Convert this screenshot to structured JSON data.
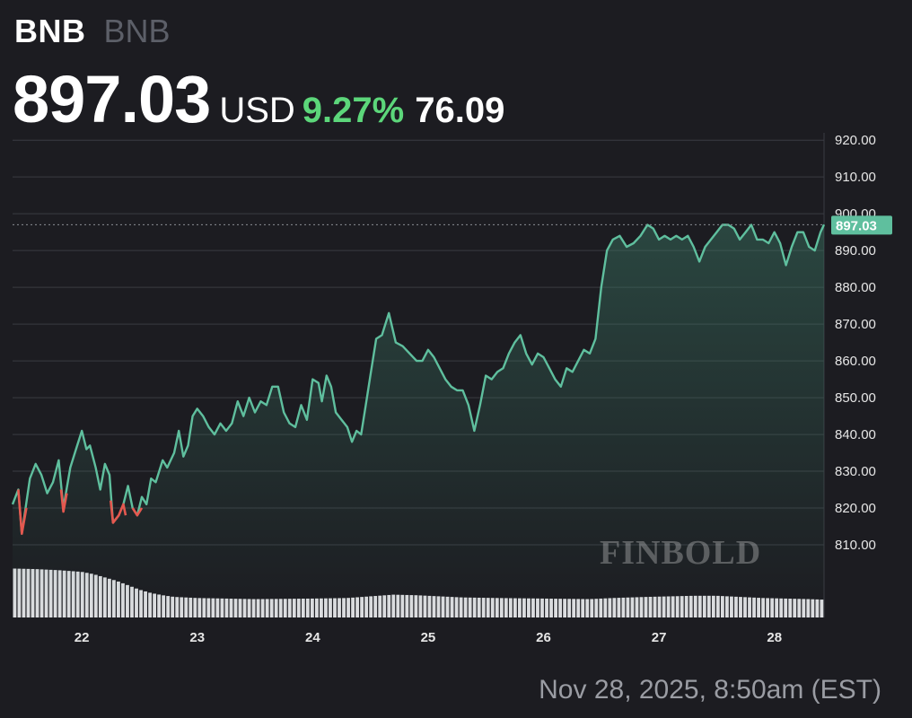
{
  "header": {
    "ticker": "BNB",
    "ticker_sub": "BNB",
    "price": "897.03",
    "currency": "USD",
    "change_pct": "9.27%",
    "change_abs": "76.09"
  },
  "colors": {
    "up": "#5cd67a",
    "line": "#5fbf9e",
    "down": "#e5584f",
    "volume": "#dcdde0",
    "badge": "#5fbf9e"
  },
  "watermark": "FINBOLD",
  "timestamp": "Nov 28, 2025, 8:50am (EST)",
  "chart_data": {
    "type": "area",
    "x_unit": "day of November 2025",
    "ylim": [
      800,
      922
    ],
    "xlim": [
      21.4,
      28.43
    ],
    "yticks": [
      810,
      820,
      830,
      840,
      850,
      860,
      870,
      880,
      890,
      900,
      910,
      920
    ],
    "ytick_labels": [
      "810.00",
      "820.00",
      "830.00",
      "840.00",
      "850.00",
      "860.00",
      "870.00",
      "880.00",
      "890.00",
      "900.00",
      "910.00",
      "920.00"
    ],
    "xticks": [
      22,
      23,
      24,
      25,
      26,
      27,
      28
    ],
    "xtick_labels": [
      "22",
      "23",
      "24",
      "25",
      "26",
      "27",
      "28"
    ],
    "grid": true,
    "current_price": 897.03,
    "current_price_label": "897.03",
    "price_series": [
      [
        21.4,
        821
      ],
      [
        21.45,
        825
      ],
      [
        21.48,
        813
      ],
      [
        21.55,
        828
      ],
      [
        21.6,
        832
      ],
      [
        21.65,
        829
      ],
      [
        21.7,
        824
      ],
      [
        21.75,
        827
      ],
      [
        21.8,
        833
      ],
      [
        21.84,
        820
      ],
      [
        21.9,
        831
      ],
      [
        21.95,
        836
      ],
      [
        22.0,
        841
      ],
      [
        22.04,
        836
      ],
      [
        22.07,
        837
      ],
      [
        22.12,
        831
      ],
      [
        22.16,
        825
      ],
      [
        22.2,
        832
      ],
      [
        22.24,
        829
      ],
      [
        22.27,
        816
      ],
      [
        22.32,
        818
      ],
      [
        22.36,
        821
      ],
      [
        22.4,
        826
      ],
      [
        22.44,
        820
      ],
      [
        22.48,
        818
      ],
      [
        22.52,
        823
      ],
      [
        22.56,
        821
      ],
      [
        22.6,
        828
      ],
      [
        22.64,
        827
      ],
      [
        22.7,
        833
      ],
      [
        22.74,
        831
      ],
      [
        22.8,
        835
      ],
      [
        22.84,
        841
      ],
      [
        22.88,
        834
      ],
      [
        22.92,
        837
      ],
      [
        22.96,
        845
      ],
      [
        23.0,
        847
      ],
      [
        23.05,
        845
      ],
      [
        23.1,
        842
      ],
      [
        23.15,
        840
      ],
      [
        23.2,
        843
      ],
      [
        23.25,
        841
      ],
      [
        23.3,
        843
      ],
      [
        23.35,
        849
      ],
      [
        23.4,
        845
      ],
      [
        23.45,
        850
      ],
      [
        23.5,
        846
      ],
      [
        23.55,
        849
      ],
      [
        23.6,
        848
      ],
      [
        23.65,
        853
      ],
      [
        23.7,
        853
      ],
      [
        23.75,
        846
      ],
      [
        23.8,
        843
      ],
      [
        23.85,
        842
      ],
      [
        23.9,
        848
      ],
      [
        23.95,
        844
      ],
      [
        24.0,
        855
      ],
      [
        24.05,
        854
      ],
      [
        24.08,
        849
      ],
      [
        24.12,
        856
      ],
      [
        24.16,
        853
      ],
      [
        24.2,
        846
      ],
      [
        24.25,
        844
      ],
      [
        24.3,
        842
      ],
      [
        24.34,
        838
      ],
      [
        24.38,
        841
      ],
      [
        24.42,
        840
      ],
      [
        24.46,
        848
      ],
      [
        24.5,
        856
      ],
      [
        24.55,
        866
      ],
      [
        24.6,
        867
      ],
      [
        24.66,
        873
      ],
      [
        24.72,
        865
      ],
      [
        24.78,
        864
      ],
      [
        24.84,
        862
      ],
      [
        24.9,
        860
      ],
      [
        24.95,
        860
      ],
      [
        25.0,
        863
      ],
      [
        25.05,
        861
      ],
      [
        25.1,
        858
      ],
      [
        25.15,
        855
      ],
      [
        25.2,
        853
      ],
      [
        25.25,
        852
      ],
      [
        25.3,
        852
      ],
      [
        25.35,
        848
      ],
      [
        25.4,
        841
      ],
      [
        25.45,
        848
      ],
      [
        25.5,
        856
      ],
      [
        25.55,
        855
      ],
      [
        25.6,
        857
      ],
      [
        25.65,
        858
      ],
      [
        25.7,
        862
      ],
      [
        25.75,
        865
      ],
      [
        25.8,
        867
      ],
      [
        25.85,
        862
      ],
      [
        25.9,
        859
      ],
      [
        25.95,
        862
      ],
      [
        26.0,
        861
      ],
      [
        26.05,
        858
      ],
      [
        26.1,
        855
      ],
      [
        26.15,
        853
      ],
      [
        26.2,
        858
      ],
      [
        26.25,
        857
      ],
      [
        26.3,
        860
      ],
      [
        26.35,
        863
      ],
      [
        26.4,
        862
      ],
      [
        26.45,
        866
      ],
      [
        26.5,
        880
      ],
      [
        26.55,
        890
      ],
      [
        26.6,
        893
      ],
      [
        26.66,
        894
      ],
      [
        26.72,
        891
      ],
      [
        26.78,
        892
      ],
      [
        26.84,
        894
      ],
      [
        26.9,
        897
      ],
      [
        26.95,
        896
      ],
      [
        27.0,
        893
      ],
      [
        27.05,
        894
      ],
      [
        27.1,
        893
      ],
      [
        27.15,
        894
      ],
      [
        27.2,
        893
      ],
      [
        27.25,
        894
      ],
      [
        27.3,
        891
      ],
      [
        27.35,
        887
      ],
      [
        27.4,
        891
      ],
      [
        27.45,
        893
      ],
      [
        27.5,
        895
      ],
      [
        27.55,
        897
      ],
      [
        27.6,
        897
      ],
      [
        27.65,
        896
      ],
      [
        27.7,
        893
      ],
      [
        27.75,
        895
      ],
      [
        27.8,
        897
      ],
      [
        27.85,
        893
      ],
      [
        27.9,
        893
      ],
      [
        27.95,
        892
      ],
      [
        28.0,
        895
      ],
      [
        28.05,
        892
      ],
      [
        28.1,
        886
      ],
      [
        28.15,
        891
      ],
      [
        28.2,
        895
      ],
      [
        28.25,
        895
      ],
      [
        28.3,
        891
      ],
      [
        28.35,
        890
      ],
      [
        28.4,
        895
      ],
      [
        28.43,
        897.03
      ]
    ],
    "down_segments": [
      [
        [
          21.45,
          825
        ],
        [
          21.48,
          813
        ],
        [
          21.52,
          820
        ]
      ],
      [
        [
          21.82,
          825
        ],
        [
          21.84,
          819
        ],
        [
          21.87,
          824
        ]
      ],
      [
        [
          22.25,
          822
        ],
        [
          22.27,
          816
        ],
        [
          22.32,
          818
        ],
        [
          22.36,
          821
        ],
        [
          22.38,
          818
        ]
      ],
      [
        [
          22.44,
          820
        ],
        [
          22.48,
          818
        ],
        [
          22.52,
          820
        ]
      ]
    ],
    "volume_series": [
      [
        21.4,
        88
      ],
      [
        21.6,
        87
      ],
      [
        21.8,
        85
      ],
      [
        22.0,
        82
      ],
      [
        22.1,
        78
      ],
      [
        22.2,
        72
      ],
      [
        22.3,
        66
      ],
      [
        22.4,
        58
      ],
      [
        22.5,
        50
      ],
      [
        22.6,
        44
      ],
      [
        22.7,
        40
      ],
      [
        22.8,
        37
      ],
      [
        23.0,
        35
      ],
      [
        23.5,
        33
      ],
      [
        24.0,
        34
      ],
      [
        24.3,
        35
      ],
      [
        24.5,
        38
      ],
      [
        24.7,
        41
      ],
      [
        24.9,
        40
      ],
      [
        25.1,
        38
      ],
      [
        25.3,
        36
      ],
      [
        25.6,
        35
      ],
      [
        26.0,
        34
      ],
      [
        26.4,
        33
      ],
      [
        26.6,
        35
      ],
      [
        26.9,
        37
      ],
      [
        27.1,
        38
      ],
      [
        27.3,
        39
      ],
      [
        27.5,
        39
      ],
      [
        27.7,
        37
      ],
      [
        27.9,
        35
      ],
      [
        28.1,
        34
      ],
      [
        28.3,
        33
      ],
      [
        28.43,
        32
      ]
    ]
  }
}
